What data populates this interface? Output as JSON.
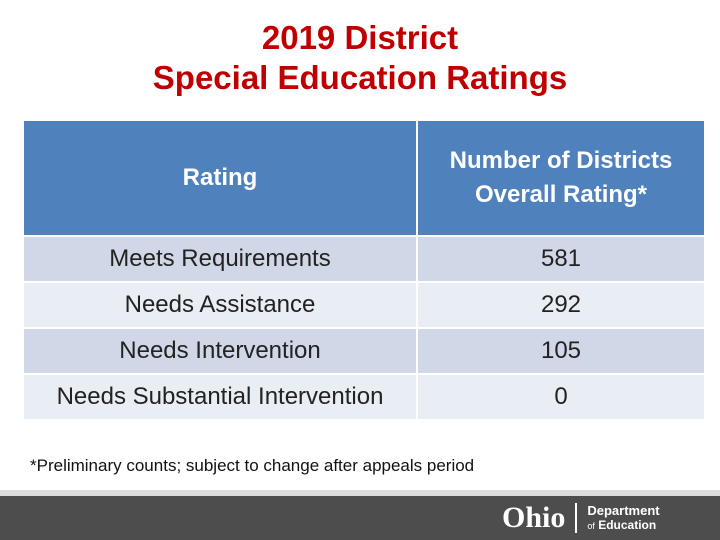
{
  "title": {
    "line1": "2019 District",
    "line2": "Special Education Ratings"
  },
  "table": {
    "headers": {
      "rating": "Rating",
      "count_line1": "Number of Districts",
      "count_line2": "Overall Rating*"
    },
    "rows": [
      {
        "rating": "Meets Requirements",
        "count": "581"
      },
      {
        "rating": "Needs Assistance",
        "count": "292"
      },
      {
        "rating": "Needs Intervention",
        "count": "105"
      },
      {
        "rating": "Needs Substantial Intervention",
        "count": "0"
      }
    ]
  },
  "footnote": "*Preliminary counts; subject to change after appeals period",
  "footer": {
    "logo_word": "Ohio",
    "dept_line1": "Department",
    "dept_of": "of",
    "dept_line2": "Education"
  },
  "colors": {
    "title": "#c00000",
    "header_bg": "#4f81bd",
    "row_odd": "#d0d8e8",
    "row_even": "#e9edf4",
    "footer_bg": "#4d4d4d"
  }
}
